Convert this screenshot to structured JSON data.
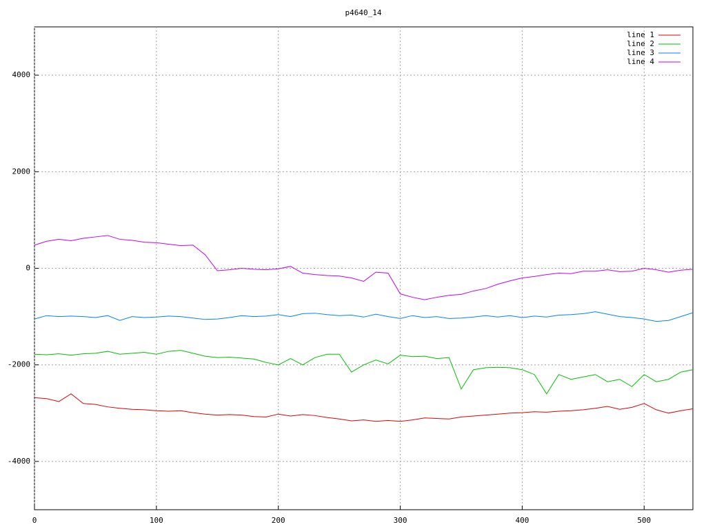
{
  "chart_data": {
    "type": "line",
    "title": "p4640_14",
    "x": [
      0,
      10,
      20,
      30,
      40,
      50,
      60,
      70,
      80,
      90,
      100,
      110,
      120,
      130,
      140,
      150,
      160,
      170,
      180,
      190,
      200,
      210,
      220,
      230,
      240,
      250,
      260,
      270,
      280,
      290,
      300,
      310,
      320,
      330,
      340,
      350,
      360,
      370,
      380,
      390,
      400,
      410,
      420,
      430,
      440,
      450,
      460,
      470,
      480,
      490,
      500,
      510,
      520,
      530,
      540
    ],
    "series": [
      {
        "name": "line 1",
        "color": "#e00000",
        "values": [
          -2680,
          -2700,
          -2760,
          -2600,
          -2800,
          -2820,
          -2870,
          -2900,
          -2920,
          -2930,
          -2950,
          -2960,
          -2950,
          -2990,
          -3020,
          -3040,
          -3030,
          -3040,
          -3070,
          -3080,
          -3020,
          -3060,
          -3030,
          -3050,
          -3090,
          -3120,
          -3160,
          -3140,
          -3170,
          -3150,
          -3170,
          -3140,
          -3100,
          -3110,
          -3120,
          -3080,
          -3060,
          -3040,
          -3020,
          -3000,
          -2990,
          -2970,
          -2980,
          -2960,
          -2950,
          -2930,
          -2900,
          -2860,
          -2920,
          -2880,
          -2800,
          -2930,
          -3000,
          -2950,
          -2910
        ]
      },
      {
        "name": "line 2",
        "color": "#00c000",
        "values": [
          -1780,
          -1790,
          -1770,
          -1800,
          -1770,
          -1760,
          -1720,
          -1780,
          -1760,
          -1740,
          -1780,
          -1720,
          -1700,
          -1760,
          -1820,
          -1850,
          -1840,
          -1860,
          -1880,
          -1950,
          -2000,
          -1870,
          -2000,
          -1850,
          -1780,
          -1780,
          -2150,
          -2000,
          -1900,
          -1980,
          -1800,
          -1830,
          -1820,
          -1870,
          -1850,
          -2500,
          -2100,
          -2060,
          -2050,
          -2060,
          -2100,
          -2200,
          -2600,
          -2200,
          -2300,
          -2250,
          -2200,
          -2350,
          -2300,
          -2450,
          -2200,
          -2350,
          -2300,
          -2150,
          -2100
        ]
      },
      {
        "name": "line 3",
        "color": "#0080ff",
        "values": [
          -1050,
          -980,
          -1000,
          -990,
          -1000,
          -1020,
          -980,
          -1080,
          -1000,
          -1020,
          -1010,
          -990,
          -1000,
          -1030,
          -1060,
          -1050,
          -1020,
          -980,
          -1000,
          -990,
          -960,
          -1000,
          -940,
          -930,
          -960,
          -980,
          -970,
          -1010,
          -950,
          -1000,
          -1040,
          -980,
          -1020,
          -1000,
          -1040,
          -1030,
          -1010,
          -980,
          -1010,
          -980,
          -1020,
          -990,
          -1010,
          -970,
          -960,
          -940,
          -900,
          -950,
          -1000,
          -1020,
          -1050,
          -1100,
          -1080,
          -1000,
          -920
        ]
      },
      {
        "name": "line 4",
        "color": "#c000ff",
        "values": [
          480,
          560,
          600,
          570,
          620,
          650,
          680,
          600,
          580,
          540,
          530,
          500,
          470,
          480,
          280,
          -50,
          -30,
          0,
          -20,
          -30,
          -10,
          40,
          -100,
          -130,
          -150,
          -160,
          -200,
          -270,
          -80,
          -100,
          -530,
          -600,
          -650,
          -600,
          -560,
          -540,
          -470,
          -420,
          -330,
          -260,
          -200,
          -170,
          -130,
          -100,
          -110,
          -60,
          -60,
          -30,
          -70,
          -60,
          0,
          -30,
          -80,
          -40,
          -20
        ]
      }
    ],
    "xlim": [
      0,
      540
    ],
    "xticks": [
      0,
      100,
      200,
      300,
      400,
      500
    ],
    "ylim": [
      -5000,
      5000
    ],
    "yticks": [
      -4000,
      -2000,
      0,
      2000,
      4000
    ],
    "grid": true,
    "legend": "top-right"
  }
}
